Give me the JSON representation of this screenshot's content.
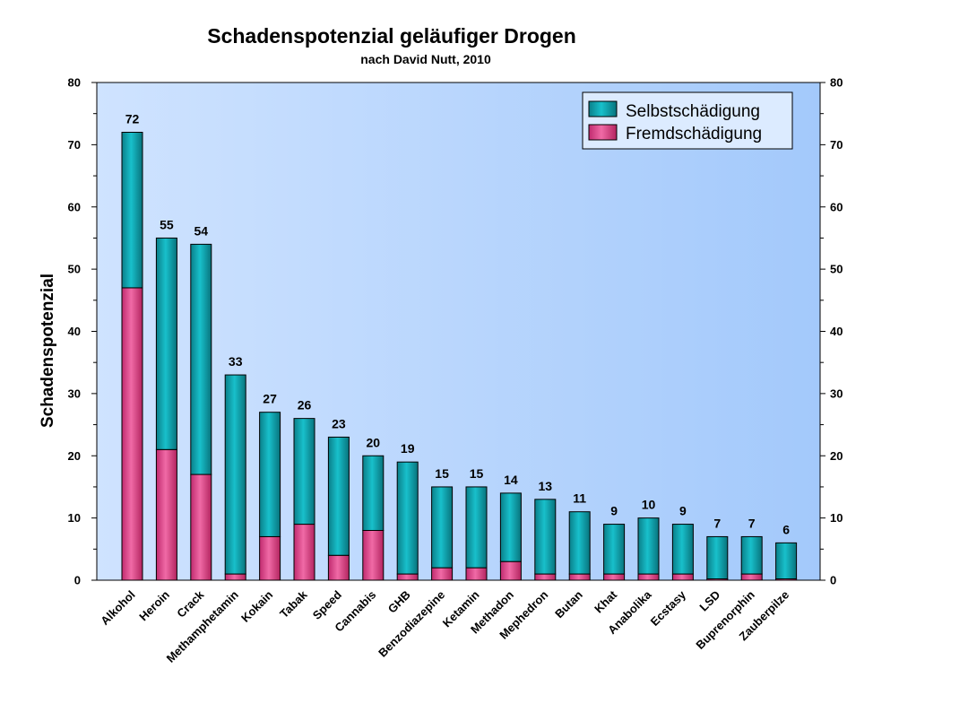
{
  "chart_data": {
    "type": "bar",
    "stacked": true,
    "title": "Schadenspotenzial geläufiger Drogen",
    "subtitle": "nach David Nutt, 2010",
    "ylabel": "Schadenspotenzial",
    "xlabel": "",
    "ylim": [
      0,
      80
    ],
    "yticks": [
      "0",
      "10",
      "20",
      "30",
      "40",
      "50",
      "60",
      "70",
      "80"
    ],
    "legend_position": "top-right",
    "categories": [
      "Alkohol",
      "Heroin",
      "Crack",
      "Methamphetamin",
      "Kokain",
      "Tabak",
      "Speed",
      "Cannabis",
      "GHB",
      "Benzodiazepine",
      "Ketamin",
      "Methadon",
      "Mephedron",
      "Butan",
      "Khat",
      "Anabolika",
      "Ecstasy",
      "LSD",
      "Buprenorphin",
      "Zauberpilze"
    ],
    "totals": [
      "72",
      "55",
      "54",
      "33",
      "27",
      "26",
      "23",
      "20",
      "19",
      "15",
      "15",
      "14",
      "13",
      "11",
      "9",
      "10",
      "9",
      "7",
      "7",
      "6"
    ],
    "series": [
      {
        "name": "Fremdschädigung",
        "color": "#e0448a",
        "values": [
          47,
          21,
          17,
          1,
          7,
          9,
          4,
          8,
          1,
          2,
          2,
          3,
          1,
          1,
          1,
          1,
          1,
          0,
          1,
          0
        ]
      },
      {
        "name": "Selbstschädigung",
        "color": "#119ea8",
        "values": [
          25,
          34,
          37,
          32,
          20,
          17,
          19,
          12,
          18,
          13,
          13,
          11,
          12,
          10,
          8,
          9,
          8,
          7,
          6,
          6
        ]
      }
    ],
    "legend_order": [
      "Selbstschädigung",
      "Fremdschädigung"
    ]
  }
}
